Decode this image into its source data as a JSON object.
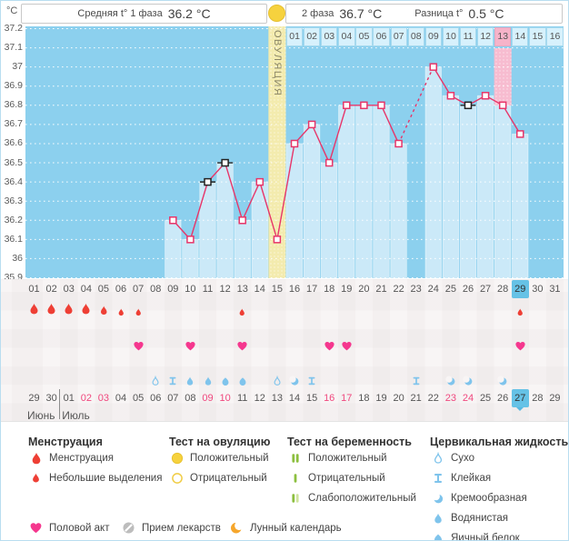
{
  "header": {
    "unit": "°C",
    "phase1_label": "Средняя t° 1 фаза",
    "phase1_value": "36.2 °C",
    "phase2_label": "2 фаза",
    "phase2_value": "36.7 °C",
    "diff_label": "Разница t°",
    "diff_value": "0.5 °C"
  },
  "chart_data": {
    "type": "line",
    "ylabel": "°C",
    "ylim": [
      35.9,
      37.2
    ],
    "grid": true,
    "y_ticks": [
      "37.2",
      "37.1",
      "37",
      "36.9",
      "36.8",
      "36.7",
      "36.6",
      "36.5",
      "36.4",
      "36.3",
      "36.2",
      "36.1",
      "36",
      "35.9"
    ],
    "x_days": [
      "01",
      "02",
      "03",
      "04",
      "05",
      "06",
      "07",
      "08",
      "09",
      "10",
      "11",
      "12",
      "13",
      "14",
      "15",
      "16",
      "17",
      "18",
      "19",
      "20",
      "21",
      "22",
      "23",
      "24",
      "25",
      "26",
      "27",
      "28",
      "29",
      "30",
      "31"
    ],
    "ovulation_day": 15,
    "ovulation_label": "ОВУЛЯЦИЯ",
    "expected_period_day": 28,
    "current_cycle_day": 29,
    "phase2_day_labels": [
      "01",
      "02",
      "03",
      "04",
      "05",
      "06",
      "07",
      "08",
      "09",
      "10",
      "11",
      "12",
      "13",
      "14",
      "15",
      "16"
    ],
    "phase2_pink_label": "13",
    "series": [
      {
        "name": "basal-temperature",
        "points": [
          {
            "day": 9,
            "temp": 36.2,
            "marker": "pink"
          },
          {
            "day": 10,
            "temp": 36.1,
            "marker": "pink"
          },
          {
            "day": 11,
            "temp": 36.4,
            "marker": "black"
          },
          {
            "day": 12,
            "temp": 36.5,
            "marker": "black"
          },
          {
            "day": 13,
            "temp": 36.2,
            "marker": "pink"
          },
          {
            "day": 14,
            "temp": 36.4,
            "marker": "pink"
          },
          {
            "day": 15,
            "temp": 36.1,
            "marker": "pink"
          },
          {
            "day": 16,
            "temp": 36.6,
            "marker": "pink"
          },
          {
            "day": 17,
            "temp": 36.7,
            "marker": "pink"
          },
          {
            "day": 18,
            "temp": 36.5,
            "marker": "pink"
          },
          {
            "day": 19,
            "temp": 36.8,
            "marker": "pink"
          },
          {
            "day": 20,
            "temp": 36.8,
            "marker": "pink"
          },
          {
            "day": 21,
            "temp": 36.8,
            "marker": "pink"
          },
          {
            "day": 22,
            "temp": 36.6,
            "marker": "pink"
          },
          {
            "day": 24,
            "temp": 37.0,
            "marker": "pink"
          },
          {
            "day": 25,
            "temp": 36.85,
            "marker": "pink"
          },
          {
            "day": 26,
            "temp": 36.8,
            "marker": "black"
          },
          {
            "day": 27,
            "temp": 36.85,
            "marker": "pink"
          },
          {
            "day": 28,
            "temp": 36.8,
            "marker": "pink"
          },
          {
            "day": 29,
            "temp": 36.65,
            "marker": "pink"
          }
        ]
      }
    ]
  },
  "rows": {
    "cycle_days": [
      "01",
      "02",
      "03",
      "04",
      "05",
      "06",
      "07",
      "08",
      "09",
      "10",
      "11",
      "12",
      "13",
      "14",
      "15",
      "16",
      "17",
      "18",
      "19",
      "20",
      "21",
      "22",
      "23",
      "24",
      "25",
      "26",
      "27",
      "28",
      "29",
      "30",
      "31"
    ],
    "current_cycle_day_index": 28,
    "menstruation": [
      {
        "day": 1,
        "size": "big"
      },
      {
        "day": 2,
        "size": "big"
      },
      {
        "day": 3,
        "size": "big"
      },
      {
        "day": 4,
        "size": "big"
      },
      {
        "day": 5,
        "size": "medium"
      },
      {
        "day": 6,
        "size": "small"
      },
      {
        "day": 7,
        "size": "small"
      },
      {
        "day": 13,
        "size": "small"
      },
      {
        "day": 29,
        "size": "small"
      }
    ],
    "intimacy_days": [
      7,
      10,
      13,
      18,
      19,
      29
    ],
    "cervical": [
      {
        "day": 8,
        "type": "dry"
      },
      {
        "day": 9,
        "type": "sticky"
      },
      {
        "day": 10,
        "type": "watery"
      },
      {
        "day": 11,
        "type": "watery"
      },
      {
        "day": 12,
        "type": "eggwhite"
      },
      {
        "day": 13,
        "type": "eggwhite"
      },
      {
        "day": 15,
        "type": "dry"
      },
      {
        "day": 16,
        "type": "creamy"
      },
      {
        "day": 17,
        "type": "sticky"
      },
      {
        "day": 23,
        "type": "sticky"
      },
      {
        "day": 25,
        "type": "creamy"
      },
      {
        "day": 26,
        "type": "creamy"
      },
      {
        "day": 28,
        "type": "creamy"
      }
    ],
    "dates": [
      "29",
      "30",
      "01",
      "02",
      "03",
      "04",
      "05",
      "06",
      "07",
      "08",
      "09",
      "10",
      "11",
      "12",
      "13",
      "14",
      "15",
      "16",
      "17",
      "18",
      "19",
      "20",
      "21",
      "22",
      "23",
      "24",
      "25",
      "26",
      "27",
      "28",
      "29"
    ],
    "weekend_date_indexes": [
      3,
      4,
      10,
      11,
      17,
      18,
      24,
      25
    ],
    "today_date_index": 28,
    "months": [
      {
        "label": "Июнь",
        "start_index": 0,
        "span": 2
      },
      {
        "label": "Июль",
        "start_index": 2,
        "span": 29
      }
    ]
  },
  "legend": {
    "groups": [
      {
        "title": "Менструация",
        "items": [
          {
            "icon": "drop-red-big-icon",
            "label": "Менструация"
          },
          {
            "icon": "drop-red-small-icon",
            "label": "Небольшие выделения"
          }
        ]
      },
      {
        "title": "Тест на овуляцию",
        "items": [
          {
            "icon": "circle-yellow-filled-icon",
            "label": "Положительный"
          },
          {
            "icon": "circle-yellow-outline-icon",
            "label": "Отрицательный"
          }
        ]
      },
      {
        "title": "Тест на беременность",
        "items": [
          {
            "icon": "test-two-bars-icon",
            "label": "Положительный"
          },
          {
            "icon": "test-one-bar-icon",
            "label": "Отрицательный"
          },
          {
            "icon": "test-weak-bars-icon",
            "label": "Слабоположительный"
          }
        ]
      },
      {
        "title": "Цервикальная жидкость",
        "items": [
          {
            "icon": "drop-outline-blue-icon",
            "label": "Сухо"
          },
          {
            "icon": "sticky-blue-icon",
            "label": "Клейкая"
          },
          {
            "icon": "creamy-blue-icon",
            "label": "Кремообразная"
          },
          {
            "icon": "drop-blue-icon",
            "label": "Водянистая"
          },
          {
            "icon": "round-blue-icon",
            "label": "Яичный белок"
          }
        ]
      }
    ],
    "footer_items": [
      {
        "icon": "heart-pink-icon",
        "label": "Половой акт"
      },
      {
        "icon": "pill-gray-icon",
        "label": "Прием лекарств"
      },
      {
        "icon": "moon-orange-icon",
        "label": "Лунный календарь"
      }
    ]
  },
  "colors": {
    "chart_bg": "#8cd0ee",
    "bar": "#cbe9f8",
    "ovulation_band": "#f3ebae",
    "period_pink": "#f7bcd0",
    "temp_line": "#e73569",
    "marker_black": "#222222",
    "menstruation_red": "#ee3f35",
    "intimacy_pink": "#f5378e",
    "cervical_blue": "#7fc4ec",
    "preg_green": "#8cbf3f",
    "preg_green_pale": "#cfe49e",
    "ovul_yellow": "#f6d23e",
    "highlight_blue": "#66c2e6",
    "weekend_red": "#f0487e",
    "moon_orange": "#f6a62b",
    "pill_gray": "#bdbdbd"
  }
}
